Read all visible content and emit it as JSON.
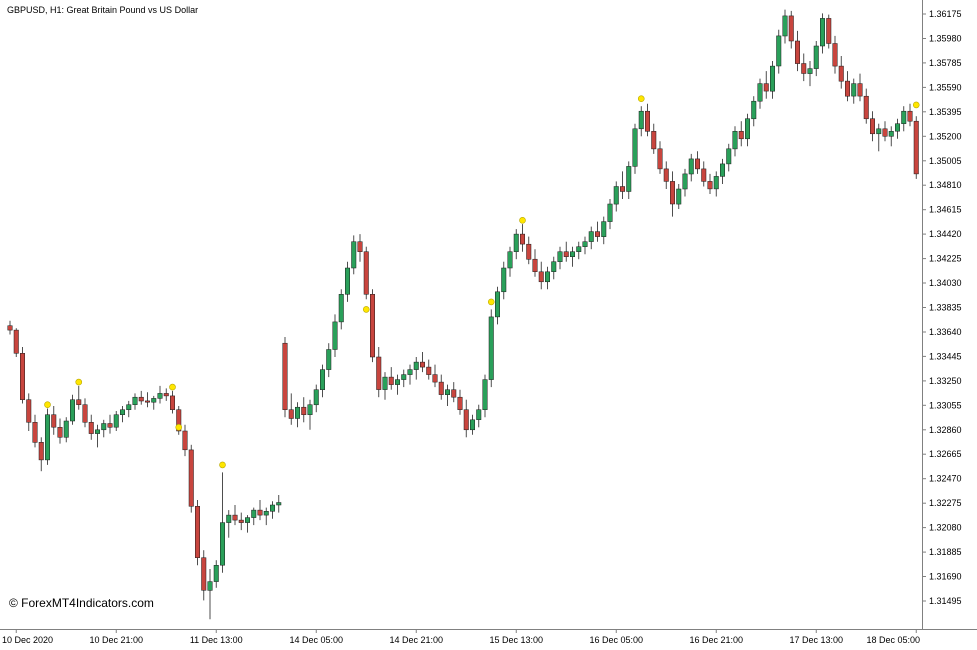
{
  "window": {
    "symbol_label": "GBPUSD, H1:  Great Britain Pound vs US Dollar",
    "watermark": "© ForexMT4Indicators.com"
  },
  "chart_data": {
    "type": "candlestick",
    "symbol": "GBPUSD",
    "timeframe": "H1",
    "description": "Great Britain Pound vs US Dollar",
    "grid": "off",
    "legend_position": "none",
    "colors": {
      "background": "#ffffff",
      "bull": "#2aa05a",
      "bear": "#c8453e",
      "wick": "#3a3a3a",
      "outline": "#1c1c1c",
      "signal": "#ffe600",
      "signal_stroke": "#b9a800",
      "axis_line": "#808080",
      "text": "#000000"
    },
    "y_axis": {
      "min": 1.31495,
      "max": 1.36175,
      "tick_step": 0.00195,
      "ticks": [
        "1.36175",
        "1.35980",
        "1.35785",
        "1.35590",
        "1.35395",
        "1.35200",
        "1.35005",
        "1.34810",
        "1.34615",
        "1.34420",
        "1.34225",
        "1.34030",
        "1.33835",
        "1.33640",
        "1.33445",
        "1.33250",
        "1.33055",
        "1.32860",
        "1.32665",
        "1.32470",
        "1.32275",
        "1.32080",
        "1.31885",
        "1.31690",
        "1.31495"
      ]
    },
    "x_axis": {
      "labels": [
        {
          "index": 1,
          "text": "10 Dec 2020"
        },
        {
          "index": 17,
          "text": "10 Dec 21:00"
        },
        {
          "index": 33,
          "text": "11 Dec 13:00"
        },
        {
          "index": 49,
          "text": "14 Dec 05:00"
        },
        {
          "index": 65,
          "text": "14 Dec 21:00"
        },
        {
          "index": 81,
          "text": "15 Dec 13:00"
        },
        {
          "index": 97,
          "text": "16 Dec 05:00"
        },
        {
          "index": 113,
          "text": "16 Dec 21:00"
        },
        {
          "index": 129,
          "text": "17 Dec 13:00"
        },
        {
          "index": 145,
          "text": "18 Dec 05:00"
        }
      ]
    },
    "candles": [
      [
        1.3369,
        1.3373,
        1.3362,
        1.33655
      ],
      [
        1.33655,
        1.3367,
        1.3344,
        1.3347
      ],
      [
        1.3347,
        1.3352,
        1.3307,
        1.331
      ],
      [
        1.331,
        1.3315,
        1.3285,
        1.3292
      ],
      [
        1.3292,
        1.3298,
        1.3272,
        1.3276
      ],
      [
        1.3276,
        1.328,
        1.3253,
        1.3262
      ],
      [
        1.3262,
        1.3303,
        1.3258,
        1.3298
      ],
      [
        1.3298,
        1.3305,
        1.3282,
        1.3288
      ],
      [
        1.3288,
        1.3295,
        1.3275,
        1.328
      ],
      [
        1.328,
        1.3296,
        1.3276,
        1.3293
      ],
      [
        1.3293,
        1.3314,
        1.329,
        1.331
      ],
      [
        1.331,
        1.3321,
        1.3302,
        1.3306
      ],
      [
        1.3306,
        1.3311,
        1.3288,
        1.3292
      ],
      [
        1.3292,
        1.3298,
        1.3278,
        1.3283
      ],
      [
        1.3283,
        1.329,
        1.3272,
        1.3286
      ],
      [
        1.3286,
        1.3294,
        1.328,
        1.3291
      ],
      [
        1.3291,
        1.3298,
        1.3283,
        1.3288
      ],
      [
        1.3288,
        1.3301,
        1.3285,
        1.3298
      ],
      [
        1.3298,
        1.3305,
        1.3292,
        1.3302
      ],
      [
        1.3302,
        1.3309,
        1.3296,
        1.3306
      ],
      [
        1.3306,
        1.3315,
        1.3302,
        1.3312
      ],
      [
        1.3312,
        1.3317,
        1.3306,
        1.3309
      ],
      [
        1.3309,
        1.3316,
        1.3304,
        1.3308
      ],
      [
        1.3308,
        1.3313,
        1.3302,
        1.3311
      ],
      [
        1.3311,
        1.3321,
        1.3307,
        1.3315
      ],
      [
        1.3315,
        1.3319,
        1.3309,
        1.3313
      ],
      [
        1.3313,
        1.3317,
        1.3299,
        1.3302
      ],
      [
        1.3302,
        1.3305,
        1.3282,
        1.3285
      ],
      [
        1.3285,
        1.329,
        1.3265,
        1.327
      ],
      [
        1.327,
        1.3274,
        1.322,
        1.3225
      ],
      [
        1.3225,
        1.323,
        1.3178,
        1.3184
      ],
      [
        1.3184,
        1.319,
        1.315,
        1.3158
      ],
      [
        1.3158,
        1.3175,
        1.3135,
        1.3165
      ],
      [
        1.3165,
        1.3182,
        1.316,
        1.3178
      ],
      [
        1.3178,
        1.3252,
        1.3172,
        1.3212
      ],
      [
        1.3212,
        1.3222,
        1.32,
        1.3218
      ],
      [
        1.3218,
        1.3226,
        1.321,
        1.3214
      ],
      [
        1.3214,
        1.322,
        1.3206,
        1.3212
      ],
      [
        1.3212,
        1.3218,
        1.3204,
        1.3216
      ],
      [
        1.3216,
        1.3224,
        1.321,
        1.3222
      ],
      [
        1.3222,
        1.323,
        1.3214,
        1.3218
      ],
      [
        1.3218,
        1.3224,
        1.321,
        1.3221
      ],
      [
        1.3221,
        1.3229,
        1.3215,
        1.3226
      ],
      [
        1.3226,
        1.3234,
        1.322,
        1.3228
      ],
      [
        1.3355,
        1.336,
        1.3296,
        1.3302
      ],
      [
        1.3302,
        1.3315,
        1.329,
        1.3295
      ],
      [
        1.3295,
        1.3308,
        1.3288,
        1.3304
      ],
      [
        1.3304,
        1.3312,
        1.3292,
        1.3298
      ],
      [
        1.3298,
        1.331,
        1.3286,
        1.3306
      ],
      [
        1.3306,
        1.3322,
        1.33,
        1.3318
      ],
      [
        1.3318,
        1.3338,
        1.3312,
        1.3334
      ],
      [
        1.3334,
        1.3355,
        1.3328,
        1.335
      ],
      [
        1.335,
        1.3378,
        1.3344,
        1.3372
      ],
      [
        1.3372,
        1.3398,
        1.3366,
        1.3394
      ],
      [
        1.3394,
        1.342,
        1.3388,
        1.3415
      ],
      [
        1.3415,
        1.3441,
        1.341,
        1.3436
      ],
      [
        1.3436,
        1.3442,
        1.342,
        1.3428
      ],
      [
        1.3428,
        1.3432,
        1.339,
        1.3394
      ],
      [
        1.3394,
        1.3398,
        1.334,
        1.3344
      ],
      [
        1.3344,
        1.3352,
        1.3312,
        1.3318
      ],
      [
        1.3318,
        1.3332,
        1.331,
        1.3328
      ],
      [
        1.3328,
        1.3336,
        1.3318,
        1.3322
      ],
      [
        1.3322,
        1.333,
        1.3314,
        1.3326
      ],
      [
        1.3326,
        1.3334,
        1.332,
        1.333
      ],
      [
        1.333,
        1.3338,
        1.3322,
        1.3334
      ],
      [
        1.3334,
        1.3344,
        1.3326,
        1.334
      ],
      [
        1.334,
        1.3348,
        1.3332,
        1.3336
      ],
      [
        1.3336,
        1.3342,
        1.3326,
        1.333
      ],
      [
        1.333,
        1.3338,
        1.332,
        1.3324
      ],
      [
        1.3324,
        1.333,
        1.331,
        1.3314
      ],
      [
        1.3314,
        1.3322,
        1.3305,
        1.3318
      ],
      [
        1.3318,
        1.3324,
        1.3308,
        1.3312
      ],
      [
        1.3312,
        1.3318,
        1.3298,
        1.3302
      ],
      [
        1.3302,
        1.331,
        1.328,
        1.3286
      ],
      [
        1.3286,
        1.3298,
        1.3282,
        1.3294
      ],
      [
        1.3294,
        1.3306,
        1.3288,
        1.3302
      ],
      [
        1.3302,
        1.333,
        1.3296,
        1.3326
      ],
      [
        1.3326,
        1.3382,
        1.332,
        1.3376
      ],
      [
        1.3376,
        1.34,
        1.337,
        1.3396
      ],
      [
        1.3396,
        1.342,
        1.339,
        1.3415
      ],
      [
        1.3415,
        1.3432,
        1.3408,
        1.3428
      ],
      [
        1.3428,
        1.3446,
        1.3422,
        1.3442
      ],
      [
        1.3442,
        1.345,
        1.3428,
        1.3434
      ],
      [
        1.3434,
        1.344,
        1.3418,
        1.3422
      ],
      [
        1.3422,
        1.343,
        1.3408,
        1.3412
      ],
      [
        1.3412,
        1.342,
        1.3398,
        1.3404
      ],
      [
        1.3404,
        1.3416,
        1.3398,
        1.3412
      ],
      [
        1.3412,
        1.3424,
        1.3406,
        1.342
      ],
      [
        1.342,
        1.3432,
        1.3414,
        1.3428
      ],
      [
        1.3428,
        1.3436,
        1.342,
        1.3424
      ],
      [
        1.3424,
        1.3432,
        1.3416,
        1.3428
      ],
      [
        1.3428,
        1.3436,
        1.3422,
        1.3432
      ],
      [
        1.3432,
        1.344,
        1.3426,
        1.3436
      ],
      [
        1.3436,
        1.3448,
        1.343,
        1.3444
      ],
      [
        1.3444,
        1.3452,
        1.3436,
        1.344
      ],
      [
        1.344,
        1.3456,
        1.3434,
        1.3452
      ],
      [
        1.3452,
        1.347,
        1.3446,
        1.3466
      ],
      [
        1.3466,
        1.3484,
        1.346,
        1.348
      ],
      [
        1.348,
        1.3492,
        1.347,
        1.3476
      ],
      [
        1.3476,
        1.35,
        1.347,
        1.3496
      ],
      [
        1.3496,
        1.353,
        1.349,
        1.3526
      ],
      [
        1.3526,
        1.3544,
        1.352,
        1.354
      ],
      [
        1.354,
        1.3546,
        1.352,
        1.3524
      ],
      [
        1.3524,
        1.353,
        1.3506,
        1.351
      ],
      [
        1.351,
        1.3516,
        1.349,
        1.3494
      ],
      [
        1.3494,
        1.35,
        1.3478,
        1.3484
      ],
      [
        1.3484,
        1.3492,
        1.3456,
        1.3466
      ],
      [
        1.3466,
        1.3482,
        1.3462,
        1.3478
      ],
      [
        1.3478,
        1.3494,
        1.3472,
        1.349
      ],
      [
        1.349,
        1.3506,
        1.3484,
        1.3502
      ],
      [
        1.3502,
        1.3508,
        1.349,
        1.3494
      ],
      [
        1.3494,
        1.35,
        1.348,
        1.3484
      ],
      [
        1.3484,
        1.349,
        1.3474,
        1.3478
      ],
      [
        1.3478,
        1.3492,
        1.3472,
        1.3488
      ],
      [
        1.3488,
        1.3502,
        1.3482,
        1.3498
      ],
      [
        1.3498,
        1.3514,
        1.3492,
        1.351
      ],
      [
        1.351,
        1.3528,
        1.3504,
        1.3524
      ],
      [
        1.3524,
        1.3532,
        1.3512,
        1.3518
      ],
      [
        1.3518,
        1.3538,
        1.3512,
        1.3534
      ],
      [
        1.3534,
        1.3552,
        1.3528,
        1.3548
      ],
      [
        1.3548,
        1.3566,
        1.3542,
        1.3562
      ],
      [
        1.3562,
        1.3572,
        1.355,
        1.3556
      ],
      [
        1.3556,
        1.358,
        1.355,
        1.3576
      ],
      [
        1.3576,
        1.3605,
        1.357,
        1.36
      ],
      [
        1.36,
        1.3621,
        1.3594,
        1.3616
      ],
      [
        1.3616,
        1.362,
        1.359,
        1.3596
      ],
      [
        1.3596,
        1.3604,
        1.3572,
        1.3578
      ],
      [
        1.3578,
        1.3586,
        1.3564,
        1.357
      ],
      [
        1.357,
        1.358,
        1.356,
        1.3574
      ],
      [
        1.3574,
        1.3596,
        1.3568,
        1.3592
      ],
      [
        1.3592,
        1.3618,
        1.3586,
        1.3614
      ],
      [
        1.3614,
        1.3617,
        1.359,
        1.3594
      ],
      [
        1.3594,
        1.36,
        1.357,
        1.3576
      ],
      [
        1.3576,
        1.3584,
        1.3558,
        1.3564
      ],
      [
        1.3564,
        1.3572,
        1.3548,
        1.3552
      ],
      [
        1.3552,
        1.3566,
        1.3546,
        1.3562
      ],
      [
        1.3562,
        1.357,
        1.3548,
        1.3552
      ],
      [
        1.3552,
        1.3558,
        1.353,
        1.3534
      ],
      [
        1.3534,
        1.354,
        1.3516,
        1.3522
      ],
      [
        1.3522,
        1.353,
        1.3508,
        1.3526
      ],
      [
        1.3526,
        1.3532,
        1.3516,
        1.352
      ],
      [
        1.352,
        1.3528,
        1.3512,
        1.3524
      ],
      [
        1.3524,
        1.3534,
        1.3518,
        1.353
      ],
      [
        1.353,
        1.3544,
        1.3524,
        1.354
      ],
      [
        1.354,
        1.3546,
        1.3528,
        1.3532
      ],
      [
        1.3532,
        1.3536,
        1.3486,
        1.349
      ]
    ],
    "signals": [
      {
        "index": 6,
        "price": 1.3306
      },
      {
        "index": 11,
        "price": 1.3324
      },
      {
        "index": 26,
        "price": 1.332
      },
      {
        "index": 27,
        "price": 1.3288
      },
      {
        "index": 34,
        "price": 1.3258
      },
      {
        "index": 57,
        "price": 1.3382
      },
      {
        "index": 77,
        "price": 1.3388
      },
      {
        "index": 82,
        "price": 1.3453
      },
      {
        "index": 101,
        "price": 1.355
      },
      {
        "index": 145,
        "price": 1.3545
      }
    ]
  }
}
